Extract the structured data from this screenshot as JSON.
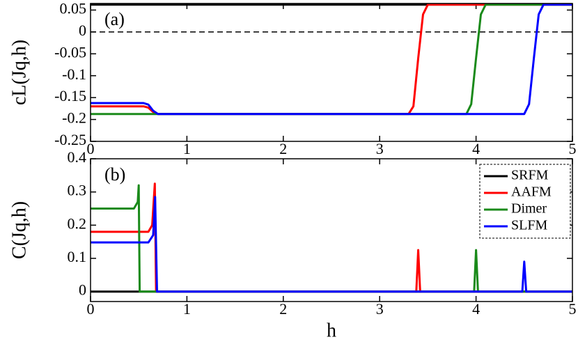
{
  "chart_data": [
    {
      "type": "line",
      "annotation": "(a)",
      "ylabel": "cL(Jq,h)",
      "xlim": [
        0,
        5
      ],
      "xticks": [
        0,
        1,
        2,
        3,
        4,
        5
      ],
      "ylim": [
        -0.25,
        0.065
      ],
      "yticks": [
        -0.25,
        -0.2,
        -0.15,
        -0.1,
        -0.05,
        0,
        0.05
      ],
      "hline": 0,
      "series": [
        {
          "name": "SRFM",
          "color": "#000000",
          "x": [
            0,
            5
          ],
          "values": [
            0.0625,
            0.0625
          ]
        },
        {
          "name": "AAFM",
          "color": "#ff0000",
          "x": [
            0,
            0.55,
            0.6,
            0.65,
            0.7,
            3.3,
            3.35,
            3.4,
            3.45,
            3.5,
            5
          ],
          "values": [
            -0.17,
            -0.17,
            -0.173,
            -0.183,
            -0.1875,
            -0.1875,
            -0.17,
            -0.06,
            0.04,
            0.0625,
            0.0625
          ]
        },
        {
          "name": "Dimer",
          "color": "#1a8a1a",
          "x": [
            0,
            3.9,
            3.95,
            4.0,
            4.05,
            4.1,
            5
          ],
          "values": [
            -0.1875,
            -0.1875,
            -0.165,
            -0.06,
            0.04,
            0.0625,
            0.0625
          ]
        },
        {
          "name": "SLFM",
          "color": "#0000ff",
          "x": [
            0,
            0.55,
            0.6,
            0.65,
            0.7,
            4.5,
            4.55,
            4.6,
            4.65,
            4.7,
            5
          ],
          "values": [
            -0.1625,
            -0.1625,
            -0.166,
            -0.18,
            -0.1875,
            -0.1875,
            -0.165,
            -0.06,
            0.04,
            0.0625,
            0.0625
          ]
        }
      ]
    },
    {
      "type": "line",
      "annotation": "(b)",
      "ylabel": "C(Jq,h)",
      "xlabel": "h",
      "xlim": [
        0,
        5
      ],
      "xticks": [
        0,
        1,
        2,
        3,
        4,
        5
      ],
      "ylim": [
        -0.03,
        0.4
      ],
      "yticks": [
        0,
        0.1,
        0.2,
        0.3,
        0.4
      ],
      "legend": "upper right",
      "series": [
        {
          "name": "SRFM",
          "color": "#000000",
          "x": [
            0,
            5
          ],
          "values": [
            0,
            0
          ]
        },
        {
          "name": "AAFM",
          "color": "#ff0000",
          "x": [
            0,
            0.6,
            0.64,
            0.667,
            0.68,
            3.38,
            3.4,
            3.42,
            5
          ],
          "values": [
            0.18,
            0.18,
            0.2,
            0.325,
            0,
            0,
            0.125,
            0,
            0
          ]
        },
        {
          "name": "Dimer",
          "color": "#1a8a1a",
          "x": [
            0,
            0.45,
            0.49,
            0.5,
            0.51,
            3.98,
            4.0,
            4.02,
            5
          ],
          "values": [
            0.25,
            0.25,
            0.27,
            0.32,
            0,
            0,
            0.125,
            0,
            0
          ]
        },
        {
          "name": "SLFM",
          "color": "#0000ff",
          "x": [
            0,
            0.6,
            0.65,
            0.67,
            0.69,
            4.48,
            4.5,
            4.52,
            5
          ],
          "values": [
            0.148,
            0.148,
            0.17,
            0.285,
            0,
            0,
            0.09,
            0,
            0
          ]
        }
      ]
    }
  ]
}
